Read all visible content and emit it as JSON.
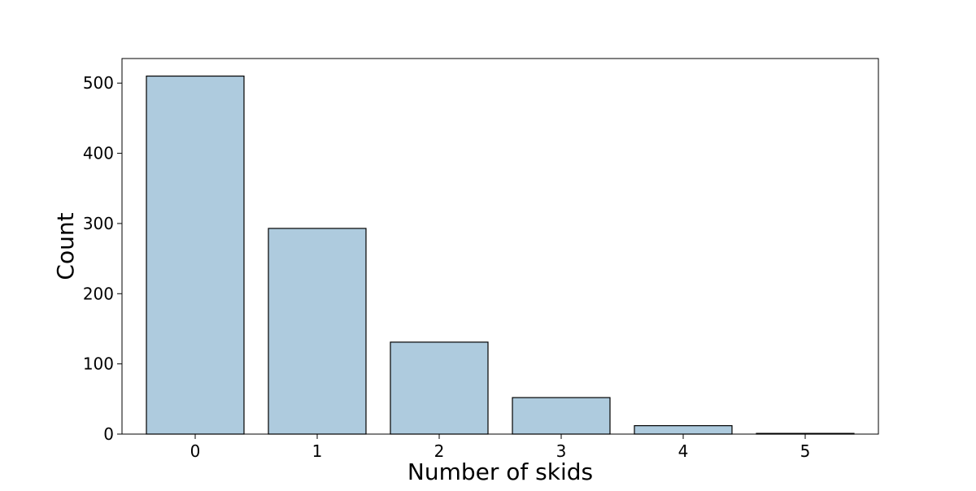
{
  "chart_data": {
    "type": "bar",
    "categories": [
      "0",
      "1",
      "2",
      "3",
      "4",
      "5"
    ],
    "values": [
      510,
      293,
      131,
      52,
      12,
      1
    ],
    "title": "",
    "xlabel": "Number of skids",
    "ylabel": "Count",
    "ylim": [
      0,
      535
    ],
    "yticks": [
      0,
      100,
      200,
      300,
      400,
      500
    ],
    "grid": false,
    "legend": "none",
    "bar_color": "#aecbde",
    "edge_color": "#000000"
  }
}
